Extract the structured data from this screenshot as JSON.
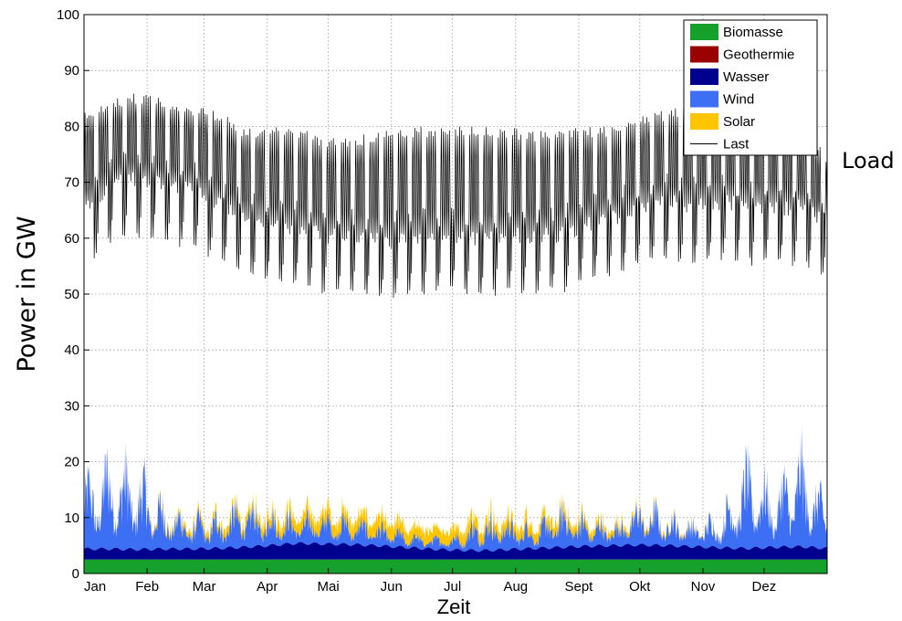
{
  "chart_data": {
    "type": "area",
    "xlabel": "Zeit",
    "ylabel": "Power in GW",
    "side_label": "Load",
    "ylim": [
      0,
      100
    ],
    "yticks": [
      0,
      10,
      20,
      30,
      40,
      50,
      60,
      70,
      80,
      90,
      100
    ],
    "xlim_days": [
      0,
      365
    ],
    "months": [
      "Jan",
      "Feb",
      "Mar",
      "Apr",
      "Mai",
      "Jun",
      "Jul",
      "Aug",
      "Sept",
      "Okt",
      "Nov",
      "Dez"
    ],
    "grid": true,
    "legend_position": "top-right",
    "series": [
      {
        "name": "Biomasse",
        "color": "#16a02c",
        "kind": "area",
        "values": [
          2.5
        ]
      },
      {
        "name": "Geothermie",
        "color": "#9b0000",
        "kind": "area",
        "values": [
          0.0
        ]
      },
      {
        "name": "Wasser",
        "color": "#00008f",
        "kind": "area",
        "values": [
          1.9,
          1.9,
          1.8,
          1.9,
          1.9,
          2.0,
          2.2,
          2.5,
          2.9,
          2.8,
          2.7,
          2.5,
          2.2,
          1.9,
          1.7,
          1.6,
          1.8,
          2.0,
          2.2,
          2.4,
          2.5,
          2.6,
          2.5,
          2.3,
          2.1,
          2.0,
          2.2,
          2.3,
          2.0
        ]
      },
      {
        "name": "Wind",
        "color": "#3d6ff5",
        "kind": "area",
        "values": [
          7.3,
          9.9,
          8.8,
          5.0,
          3.6,
          3.5,
          4.8,
          3.8,
          2.9,
          3.2,
          2.9,
          2.4,
          1.6,
          1.3,
          1.6,
          3.7,
          3.3,
          2.4,
          4.4,
          2.8,
          2.4,
          4.6,
          3.4,
          2.7,
          3.6,
          9.5,
          6.4,
          10.3,
          4.7
        ]
      },
      {
        "name": "Solar",
        "color": "#ffc600",
        "kind": "area",
        "values": [
          0.1,
          0.2,
          0.3,
          0.6,
          0.9,
          1.2,
          1.5,
          1.8,
          2.1,
          2.2,
          2.3,
          2.3,
          2.3,
          2.2,
          2.2,
          2.1,
          2.0,
          1.8,
          1.6,
          1.3,
          1.0,
          0.7,
          0.5,
          0.3,
          0.2,
          0.1,
          0.1,
          0.1,
          0.1
        ]
      },
      {
        "name": "Last",
        "color": "#000000",
        "kind": "line",
        "values_weekday_peak": [
          83,
          85,
          86,
          85,
          84,
          83,
          80,
          80,
          80,
          78,
          78,
          79,
          80,
          80,
          80,
          80,
          80,
          79,
          80,
          80,
          80,
          82,
          83,
          84,
          85,
          84,
          84,
          80,
          75
        ],
        "values_weekend_min": [
          54,
          59,
          60,
          59,
          58,
          56,
          53,
          52,
          51,
          50,
          50,
          49,
          49,
          50,
          50,
          49,
          50,
          50,
          50,
          52,
          53,
          55,
          56,
          55,
          56,
          55,
          55,
          55,
          52
        ]
      }
    ]
  }
}
